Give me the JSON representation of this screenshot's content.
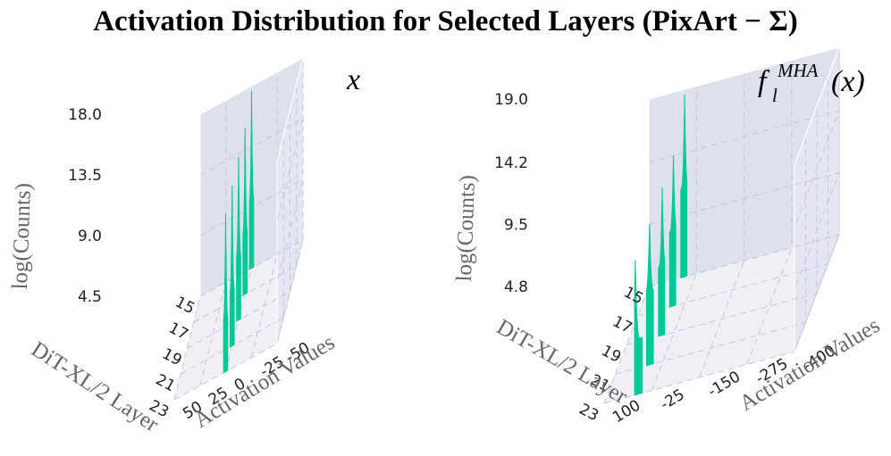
{
  "title": "Activation Distribution for Selected Layers (PixArt − Σ)",
  "colors": {
    "surface": "#00c896",
    "pane_back": "#e4e7f1",
    "pane_side": "#dde1ec",
    "pane_floor": "#eef0f6",
    "grid": "#c4c8d4"
  },
  "chart_data": [
    {
      "type": "3d-area",
      "panel_label": "x",
      "zlabel": "log(Counts)",
      "xlabel": "DiT-XL/2 Layer",
      "ylabel": "Activation Values",
      "layer_ticks": [
        "15",
        "17",
        "19",
        "21",
        "23"
      ],
      "layers": [
        15,
        17,
        19,
        21,
        23
      ],
      "act_ticks": [
        "-50",
        "-25",
        "0",
        "25",
        "50"
      ],
      "act_range": [
        -50,
        50
      ],
      "count_ticks": [
        "4.5",
        "9.0",
        "13.5",
        "18.0"
      ],
      "count_range": [
        4.5,
        18.0
      ],
      "series": [
        {
          "layer": 15,
          "act_range": [
            -2,
            2
          ],
          "peak_act": 0,
          "peak": 17.6,
          "base": 9.5
        },
        {
          "layer": 17,
          "act_range": [
            -2,
            2
          ],
          "peak_act": 0,
          "peak": 16.8,
          "base": 9.0
        },
        {
          "layer": 19,
          "act_range": [
            -2,
            2
          ],
          "peak_act": 0,
          "peak": 16.6,
          "base": 9.2
        },
        {
          "layer": 21,
          "act_range": [
            -2,
            2
          ],
          "peak_act": 0,
          "peak": 16.4,
          "base": 8.6
        },
        {
          "layer": 23,
          "act_range": [
            -2,
            2
          ],
          "peak_act": 0,
          "peak": 16.2,
          "base": 8.4
        }
      ]
    },
    {
      "type": "3d-area",
      "panel_label": "f",
      "panel_label_sub": "l",
      "panel_label_sup": "MHA",
      "panel_label_arg": "(x)",
      "zlabel": "log(Counts)",
      "xlabel": "DiT-XL/2 Layer",
      "ylabel": "Activation Values",
      "layer_ticks": [
        "15",
        "17",
        "19",
        "21",
        "23"
      ],
      "layers": [
        15,
        17,
        19,
        21,
        23
      ],
      "act_ticks": [
        "-400",
        "-275",
        "-150",
        "-25",
        "100"
      ],
      "act_range": [
        -400,
        100
      ],
      "count_ticks": [
        "4.8",
        "9.5",
        "14.2",
        "19.0"
      ],
      "count_range": [
        4.8,
        19.0
      ],
      "series": [
        {
          "layer": 15,
          "act_range": [
            0,
            16
          ],
          "peak_act": 6,
          "peak": 18.6,
          "base": 11.5
        },
        {
          "layer": 17,
          "act_range": [
            0,
            16
          ],
          "peak_act": 6,
          "peak": 16.2,
          "base": 10.5
        },
        {
          "layer": 19,
          "act_range": [
            0,
            16
          ],
          "peak_act": 6,
          "peak": 16.0,
          "base": 10.0
        },
        {
          "layer": 21,
          "act_range": [
            0,
            18
          ],
          "peak_act": 10,
          "peak": 15.6,
          "base": 10.4
        },
        {
          "layer": 23,
          "act_range": [
            0,
            20
          ],
          "peak_act": 18,
          "peak": 15.0,
          "base": 9.0
        }
      ]
    }
  ]
}
